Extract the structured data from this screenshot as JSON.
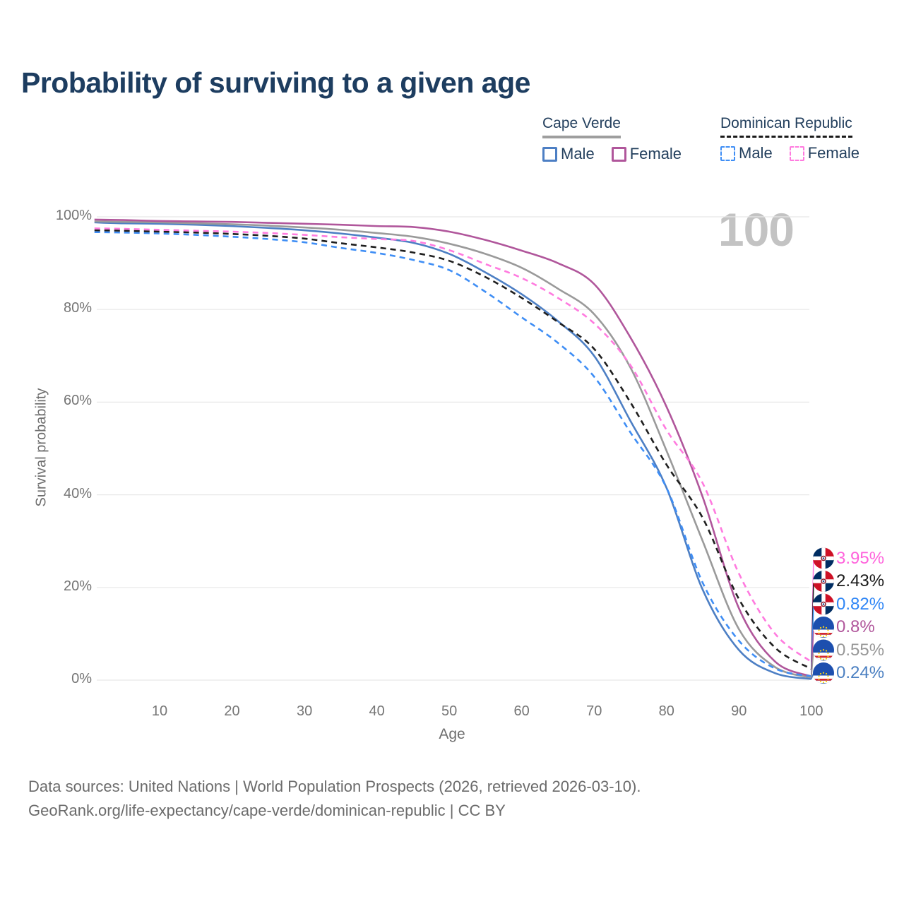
{
  "title": "Probability of surviving to a given age",
  "watermark": "100",
  "legend": {
    "groups": [
      {
        "label": "Cape Verde",
        "style": "solid",
        "underline_color": "#9e9e9e",
        "items": [
          {
            "label": "Male"
          },
          {
            "label": "Female"
          }
        ]
      },
      {
        "label": "Dominican Republic",
        "style": "dashed",
        "underline_color": "#1a1a1a",
        "items": [
          {
            "label": "Male"
          },
          {
            "label": "Female"
          }
        ]
      }
    ]
  },
  "axes": {
    "x": {
      "label": "Age",
      "min": 0,
      "max": 100,
      "ticks": [
        10,
        20,
        30,
        40,
        50,
        60,
        70,
        80,
        90,
        100
      ]
    },
    "y": {
      "label": "Survival probability",
      "min": 0,
      "max": 100,
      "ticks": [
        {
          "value": 0,
          "label": "0%"
        },
        {
          "value": 20,
          "label": "20%"
        },
        {
          "value": 40,
          "label": "40%"
        },
        {
          "value": 60,
          "label": "60%"
        },
        {
          "value": 80,
          "label": "80%"
        },
        {
          "value": 100,
          "label": "100%"
        }
      ]
    }
  },
  "chart_data": {
    "type": "line",
    "title": "Probability of surviving to a given age",
    "xlabel": "Age",
    "ylabel": "Survival probability",
    "xlim": [
      0,
      100
    ],
    "ylim_pct": [
      0,
      100
    ],
    "grid": "horizontal",
    "ages": [
      1,
      5,
      10,
      15,
      20,
      25,
      30,
      35,
      40,
      45,
      50,
      55,
      60,
      65,
      70,
      75,
      80,
      85,
      90,
      95,
      100
    ],
    "series": [
      {
        "name": "Dominican Republic Female",
        "country": "Dominican Republic",
        "sex": "Female",
        "color": "#ff7bdf",
        "dash": "8 6",
        "flag": "dominican-republic",
        "end_label": "3.95%",
        "end_label_color": "#ff63dc",
        "values": [
          97.5,
          97.4,
          97.2,
          97.0,
          96.8,
          96.5,
          96.1,
          95.6,
          95.2,
          94.8,
          92.8,
          89.8,
          86.8,
          82.5,
          77.0,
          68.0,
          54.0,
          42.5,
          23.0,
          10.0,
          3.95
        ]
      },
      {
        "name": "Dominican Republic Total",
        "country": "Dominican Republic",
        "sex": "Both",
        "color": "#1f1f1f",
        "dash": "8 6",
        "flag": "dominican-republic",
        "end_label": "2.43%",
        "end_label_color": "#1a1a1a",
        "values": [
          97.1,
          97.0,
          96.8,
          96.6,
          96.3,
          95.9,
          95.3,
          94.3,
          93.4,
          92.3,
          90.5,
          87.0,
          82.5,
          77.3,
          71.5,
          60.0,
          46.5,
          35.0,
          17.5,
          7.0,
          2.43
        ]
      },
      {
        "name": "Dominican Republic Male",
        "country": "Dominican Republic",
        "sex": "Male",
        "color": "#3f8ef5",
        "dash": "8 6",
        "flag": "dominican-republic",
        "end_label": "0.82%",
        "end_label_color": "#2f86f6",
        "values": [
          96.7,
          96.6,
          96.4,
          96.1,
          95.7,
          95.2,
          94.5,
          93.3,
          92.2,
          90.7,
          88.5,
          83.8,
          78.3,
          72.8,
          65.5,
          53.5,
          41.5,
          21.0,
          8.5,
          2.5,
          0.82
        ]
      },
      {
        "name": "Cape Verde Female",
        "country": "Cape Verde",
        "sex": "Female",
        "color": "#b0569b",
        "dash": null,
        "flag": "cape-verde",
        "end_label": "0.8%",
        "end_label_color": "#b0569b",
        "values": [
          99.4,
          99.3,
          99.1,
          99.0,
          98.9,
          98.7,
          98.5,
          98.3,
          98.0,
          97.8,
          96.8,
          95.0,
          92.7,
          90.0,
          85.5,
          74.0,
          59.0,
          39.5,
          15.5,
          4.0,
          0.8
        ]
      },
      {
        "name": "Cape Verde Total",
        "country": "Cape Verde",
        "sex": "Both",
        "color": "#9a9a9a",
        "dash": null,
        "flag": "cape-verde",
        "end_label": "0.55%",
        "end_label_color": "#979797",
        "values": [
          99.0,
          98.9,
          98.8,
          98.6,
          98.4,
          98.1,
          97.7,
          97.2,
          96.5,
          95.7,
          94.2,
          92.0,
          89.0,
          84.5,
          79.0,
          67.5,
          49.5,
          30.0,
          11.0,
          2.8,
          0.55
        ]
      },
      {
        "name": "Cape Verde Male",
        "country": "Cape Verde",
        "sex": "Male",
        "color": "#4d7fc4",
        "dash": null,
        "flag": "cape-verde",
        "end_label": "0.24%",
        "end_label_color": "#4a7fc1",
        "values": [
          98.8,
          98.6,
          98.5,
          98.3,
          98.0,
          97.6,
          97.1,
          96.4,
          95.5,
          94.4,
          92.0,
          88.0,
          83.3,
          77.5,
          70.0,
          56.0,
          41.5,
          19.5,
          6.5,
          1.5,
          0.24
        ]
      }
    ]
  },
  "flag_colors": {
    "dominican_republic": {
      "blue": "#002d62",
      "red": "#ce1126",
      "cross": "#ffffff"
    },
    "cape_verde": {
      "blue": "#1d4fae",
      "white": "#ffffff",
      "red": "#d7282f",
      "star": "#f7d116"
    }
  },
  "footer": {
    "line1": "Data sources: United Nations | World Population Prospects (2026, retrieved 2026-03-10).",
    "line2": "GeoRank.org/life-expectancy/cape-verde/dominican-republic | CC BY"
  }
}
